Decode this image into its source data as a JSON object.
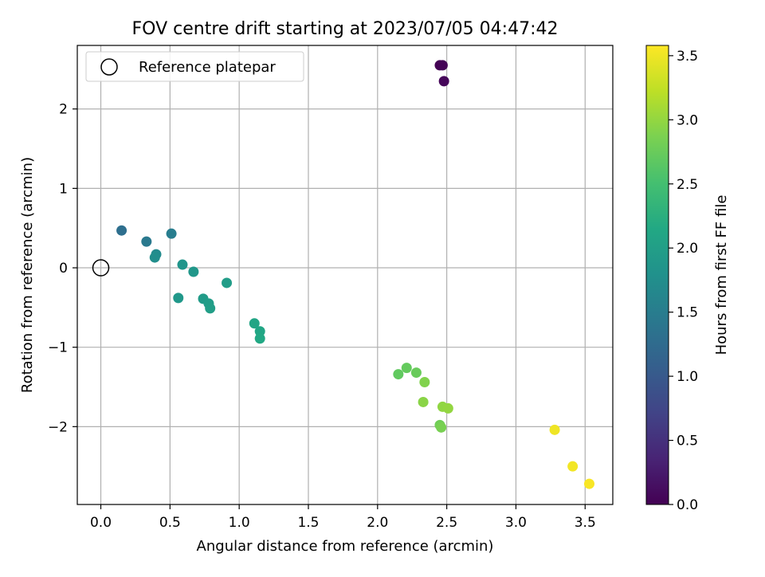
{
  "chart_data": {
    "type": "scatter",
    "title": "FOV centre drift starting at 2023/07/05 04:47:42",
    "xlabel": "Angular distance from reference (arcmin)",
    "ylabel": "Rotation from reference (arcmin)",
    "xlim": [
      -0.17,
      3.7
    ],
    "ylim": [
      -2.98,
      2.8
    ],
    "xticks": [
      0.0,
      0.5,
      1.0,
      1.5,
      2.0,
      2.5,
      3.0,
      3.5
    ],
    "yticks": [
      -2,
      -1,
      0,
      1,
      2
    ],
    "xtick_labels": [
      "0.0",
      "0.5",
      "1.0",
      "1.5",
      "2.0",
      "2.5",
      "3.0",
      "3.5"
    ],
    "ytick_labels": [
      "−2",
      "−1",
      "0",
      "1",
      "2"
    ],
    "grid": true,
    "legend": {
      "placement": "top-left",
      "label": "Reference platepar"
    },
    "reference_point": {
      "x": 0.0,
      "y": 0.0
    },
    "colorbar": {
      "label": "Hours from first FF file",
      "range": [
        0.0,
        3.58
      ],
      "ticks": [
        0.0,
        0.5,
        1.0,
        1.5,
        2.0,
        2.5,
        3.0,
        3.5
      ],
      "tick_labels": [
        "0.0",
        "0.5",
        "1.0",
        "1.5",
        "2.0",
        "2.5",
        "3.0",
        "3.5"
      ],
      "colormap": "viridis"
    },
    "points": [
      {
        "x": 2.45,
        "y": 2.55,
        "c": 0.0
      },
      {
        "x": 2.47,
        "y": 2.55,
        "c": 0.02
      },
      {
        "x": 2.48,
        "y": 2.35,
        "c": 0.05
      },
      {
        "x": 0.15,
        "y": 0.47,
        "c": 1.3
      },
      {
        "x": 0.33,
        "y": 0.33,
        "c": 1.45
      },
      {
        "x": 0.51,
        "y": 0.43,
        "c": 1.5
      },
      {
        "x": 0.4,
        "y": 0.17,
        "c": 1.7
      },
      {
        "x": 0.39,
        "y": 0.13,
        "c": 1.75
      },
      {
        "x": 0.59,
        "y": 0.04,
        "c": 1.85
      },
      {
        "x": 0.67,
        "y": -0.05,
        "c": 1.88
      },
      {
        "x": 0.56,
        "y": -0.38,
        "c": 1.9
      },
      {
        "x": 0.74,
        "y": -0.39,
        "c": 1.95
      },
      {
        "x": 0.78,
        "y": -0.45,
        "c": 1.98
      },
      {
        "x": 0.79,
        "y": -0.51,
        "c": 2.0
      },
      {
        "x": 0.91,
        "y": -0.19,
        "c": 1.97
      },
      {
        "x": 1.11,
        "y": -0.7,
        "c": 2.1
      },
      {
        "x": 1.15,
        "y": -0.8,
        "c": 2.12
      },
      {
        "x": 1.15,
        "y": -0.89,
        "c": 2.15
      },
      {
        "x": 2.15,
        "y": -1.34,
        "c": 2.7
      },
      {
        "x": 2.21,
        "y": -1.26,
        "c": 2.72
      },
      {
        "x": 2.28,
        "y": -1.32,
        "c": 2.75
      },
      {
        "x": 2.34,
        "y": -1.44,
        "c": 2.9
      },
      {
        "x": 2.33,
        "y": -1.69,
        "c": 2.95
      },
      {
        "x": 2.47,
        "y": -1.75,
        "c": 2.98
      },
      {
        "x": 2.51,
        "y": -1.77,
        "c": 3.0
      },
      {
        "x": 2.45,
        "y": -1.98,
        "c": 2.8
      },
      {
        "x": 2.46,
        "y": -2.01,
        "c": 2.85
      },
      {
        "x": 3.28,
        "y": -2.04,
        "c": 3.5
      },
      {
        "x": 3.41,
        "y": -2.5,
        "c": 3.52
      },
      {
        "x": 3.53,
        "y": -2.72,
        "c": 3.55
      }
    ]
  }
}
